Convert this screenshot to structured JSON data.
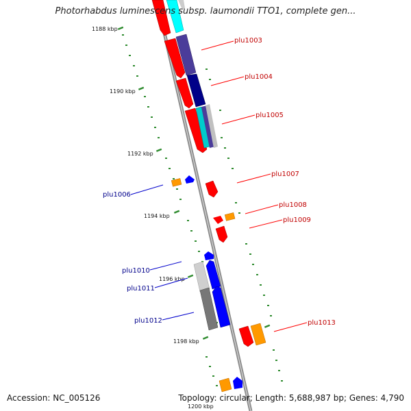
{
  "title": "Photorhabdus luminescens subsp. laumondii TTO1, complete gen...",
  "accession": "Accession: NC_005126",
  "summary": "Topology: circular; Length: 5,688,987 bp; Genes: 4,790",
  "colors": {
    "backbone": "#8c8c8c",
    "tick": "#2e8b2e",
    "forward_label": "#c00000",
    "reverse_label": "#00008b"
  },
  "kbp_labels": [
    "1188 kbp",
    "1190 kbp",
    "1192 kbp",
    "1194 kbp",
    "1196 kbp",
    "1198 kbp",
    "1200 kbp"
  ],
  "gene_labels": {
    "plu1003": "plu1003",
    "plu1004": "plu1004",
    "plu1005": "plu1005",
    "plu1006": "plu1006",
    "plu1007": "plu1007",
    "plu1008": "plu1008",
    "plu1009": "plu1009",
    "plu1010": "plu1010",
    "plu1011": "plu1011",
    "plu1012": "plu1012",
    "plu1013": "plu1013"
  }
}
